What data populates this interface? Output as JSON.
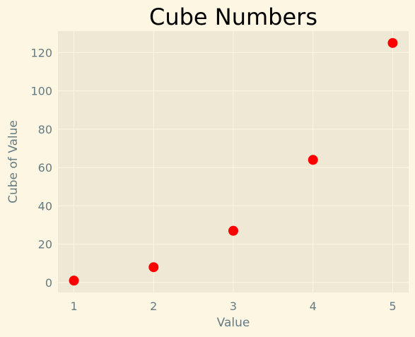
{
  "chart_data": {
    "type": "scatter",
    "title": "Cube Numbers",
    "xlabel": "Value",
    "ylabel": "Cube of Value",
    "x": [
      1,
      2,
      3,
      4,
      5
    ],
    "y": [
      1,
      8,
      27,
      64,
      125
    ],
    "xlim": [
      0.8,
      5.2
    ],
    "ylim": [
      -5.2,
      131.2
    ],
    "xticks": [
      1,
      2,
      3,
      4,
      5
    ],
    "yticks": [
      0,
      20,
      40,
      60,
      80,
      100,
      120
    ],
    "grid": true,
    "legend": "none",
    "colors": {
      "figure_background": "#fdf6e3",
      "plot_background": "#eee8d5",
      "grid": "#fdf6e3",
      "marker": "#ff0000",
      "text": "#657b83",
      "title": "#000000"
    }
  }
}
